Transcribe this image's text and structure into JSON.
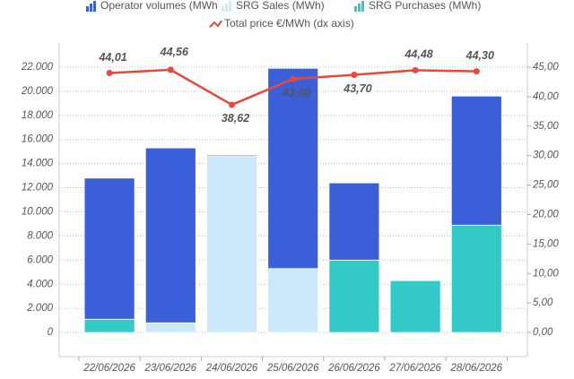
{
  "chart_data": {
    "type": "bar-line",
    "categories": [
      "22/06/2026",
      "23/06/2026",
      "24/06/2026",
      "25/06/2026",
      "26/06/2026",
      "27/06/2026",
      "28/06/2026"
    ],
    "series": [
      {
        "name": "Operator volumes (MWh",
        "type": "bar",
        "color": "#3a5fd9",
        "values": [
          11700,
          14500,
          100,
          16600,
          6400,
          0,
          10700
        ]
      },
      {
        "name": "SRG Sales (MWh)",
        "type": "bar",
        "color": "#cce8fb",
        "values": [
          0,
          800,
          14600,
          5300,
          0,
          0,
          0
        ]
      },
      {
        "name": "SRG Purchases (MWh)",
        "type": "bar",
        "color": "#33c9c6",
        "values": [
          1100,
          0,
          0,
          0,
          6000,
          4300,
          8900
        ]
      },
      {
        "name": "Total price €/MWh (dx axis)",
        "type": "line",
        "axis": "y2",
        "color": "#e8483a",
        "values": [
          44.01,
          44.56,
          38.62,
          43.0,
          43.7,
          44.48,
          44.3
        ],
        "value_labels": [
          "44,01",
          "44,56",
          "38,62",
          "43,00",
          "43,70",
          "44,48",
          "44,30"
        ]
      }
    ],
    "stacked": true,
    "ylim": [
      -2000,
      24000
    ],
    "yticks": [
      0,
      {
        "value": 2000,
        "label": "2.000"
      },
      {
        "value": 4000,
        "label": "4.000"
      },
      {
        "value": 6000,
        "label": "6.000"
      },
      {
        "value": 8000,
        "label": "8.000"
      },
      {
        "value": 10000,
        "label": "10.000"
      },
      {
        "value": 12000,
        "label": "12.000"
      },
      {
        "value": 14000,
        "label": "14.000"
      },
      {
        "value": 16000,
        "label": "16.000"
      },
      {
        "value": 18000,
        "label": "18.000"
      },
      {
        "value": 20000,
        "label": "20.000"
      },
      {
        "value": 22000,
        "label": "22.000"
      }
    ],
    "y2lim": [
      -4.1,
      49.1
    ],
    "y2ticks": [
      {
        "value": 0,
        "label": "0,00"
      },
      {
        "value": 5,
        "label": "5,00"
      },
      {
        "value": 10,
        "label": "10,00"
      },
      {
        "value": 15,
        "label": "15,00"
      },
      {
        "value": 20,
        "label": "20,00"
      },
      {
        "value": 25,
        "label": "25,00"
      },
      {
        "value": 30,
        "label": "30,00"
      },
      {
        "value": 35,
        "label": "35,00"
      },
      {
        "value": 40,
        "label": "40,00"
      },
      {
        "value": 45,
        "label": "45,00"
      }
    ],
    "grid": true,
    "legend": "top"
  }
}
